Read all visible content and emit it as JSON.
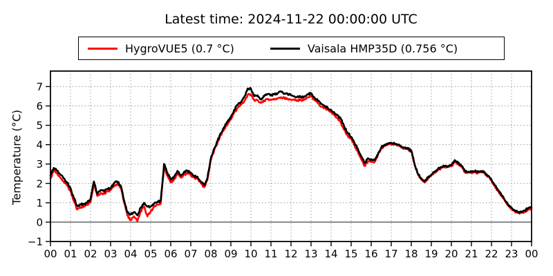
{
  "title": "Latest time: 2024-11-22 00:00:00 UTC",
  "legend": {
    "items": [
      {
        "label": "HygroVUE5 (0.7 °C)",
        "color": "#ff0000"
      },
      {
        "label": "Vaisala HMP35D (0.756 °C)",
        "color": "#000000"
      }
    ]
  },
  "chart_data": {
    "type": "line",
    "title": "Latest time: 2024-11-22 00:00:00 UTC",
    "xlabel": "",
    "ylabel": "Temperature (°C)",
    "x_ticks_hours": [
      0,
      1,
      2,
      3,
      4,
      5,
      6,
      7,
      8,
      9,
      10,
      11,
      12,
      13,
      14,
      15,
      16,
      17,
      18,
      19,
      20,
      21,
      22,
      23,
      24
    ],
    "x_ticklabels": [
      "00",
      "01",
      "02",
      "03",
      "04",
      "05",
      "06",
      "07",
      "08",
      "09",
      "10",
      "11",
      "12",
      "13",
      "14",
      "15",
      "16",
      "17",
      "18",
      "19",
      "20",
      "21",
      "22",
      "23",
      "00"
    ],
    "y_ticks": [
      -1,
      0,
      1,
      2,
      3,
      4,
      5,
      6,
      7
    ],
    "y_ticklabels": [
      "−1",
      "0",
      "1",
      "2",
      "3",
      "4",
      "5",
      "6",
      "7"
    ],
    "xlim": [
      0,
      24
    ],
    "ylim": [
      -1,
      7.8
    ],
    "grid": true,
    "grid_style": "dotted",
    "zero_line": true,
    "legend_position": "top-center",
    "x_step_minutes": 10,
    "series": [
      {
        "name": "HygroVUE5 (0.7 °C)",
        "color": "#ff0000",
        "latest_value_c": 0.7,
        "values": [
          2.25,
          2.65,
          2.5,
          2.3,
          2.1,
          1.9,
          1.6,
          1.1,
          0.65,
          0.75,
          0.85,
          0.9,
          1.05,
          1.95,
          1.35,
          1.5,
          1.45,
          1.6,
          1.65,
          1.85,
          1.95,
          1.8,
          1.05,
          0.35,
          0.1,
          0.3,
          0.05,
          0.55,
          0.8,
          0.3,
          0.55,
          0.8,
          0.9,
          0.95,
          2.85,
          2.4,
          2.05,
          2.2,
          2.5,
          2.3,
          2.45,
          2.55,
          2.4,
          2.3,
          2.25,
          2.0,
          1.8,
          2.2,
          3.2,
          3.7,
          4.1,
          4.5,
          4.8,
          5.05,
          5.3,
          5.65,
          5.9,
          6.05,
          6.25,
          6.55,
          6.6,
          6.3,
          6.3,
          6.15,
          6.25,
          6.35,
          6.3,
          6.35,
          6.4,
          6.45,
          6.4,
          6.35,
          6.3,
          6.3,
          6.3,
          6.3,
          6.35,
          6.45,
          6.5,
          6.3,
          6.15,
          5.95,
          5.9,
          5.8,
          5.7,
          5.5,
          5.35,
          5.1,
          4.75,
          4.45,
          4.3,
          3.95,
          3.65,
          3.25,
          2.9,
          3.15,
          3.15,
          3.1,
          3.45,
          3.8,
          3.95,
          4.0,
          4.0,
          4.0,
          3.95,
          3.85,
          3.8,
          3.75,
          3.65,
          2.95,
          2.45,
          2.2,
          2.05,
          2.25,
          2.4,
          2.55,
          2.7,
          2.8,
          2.85,
          2.85,
          2.9,
          3.1,
          3.0,
          2.85,
          2.6,
          2.55,
          2.55,
          2.58,
          2.55,
          2.58,
          2.5,
          2.35,
          2.15,
          1.85,
          1.6,
          1.35,
          1.1,
          0.85,
          0.7,
          0.55,
          0.48,
          0.48,
          0.55,
          0.65,
          0.7
        ]
      },
      {
        "name": "Vaisala HMP35D (0.756 °C)",
        "color": "#000000",
        "latest_value_c": 0.756,
        "values": [
          2.4,
          2.8,
          2.65,
          2.45,
          2.25,
          2.05,
          1.75,
          1.25,
          0.85,
          0.9,
          0.95,
          1.0,
          1.2,
          2.1,
          1.45,
          1.65,
          1.6,
          1.7,
          1.75,
          2.0,
          2.1,
          1.9,
          1.15,
          0.5,
          0.4,
          0.5,
          0.35,
          0.75,
          1.0,
          0.8,
          0.8,
          0.95,
          1.05,
          1.1,
          3.0,
          2.55,
          2.2,
          2.35,
          2.65,
          2.4,
          2.6,
          2.65,
          2.55,
          2.4,
          2.35,
          2.1,
          1.9,
          2.3,
          3.3,
          3.8,
          4.2,
          4.6,
          4.9,
          5.2,
          5.45,
          5.8,
          6.05,
          6.2,
          6.45,
          6.9,
          6.9,
          6.5,
          6.55,
          6.35,
          6.5,
          6.6,
          6.55,
          6.6,
          6.65,
          6.75,
          6.65,
          6.6,
          6.55,
          6.5,
          6.5,
          6.45,
          6.5,
          6.6,
          6.65,
          6.45,
          6.3,
          6.1,
          6.0,
          5.9,
          5.8,
          5.65,
          5.5,
          5.3,
          4.9,
          4.6,
          4.4,
          4.1,
          3.8,
          3.4,
          3.05,
          3.3,
          3.25,
          3.2,
          3.5,
          3.85,
          4.0,
          4.05,
          4.1,
          4.05,
          4.0,
          3.9,
          3.85,
          3.8,
          3.7,
          3.0,
          2.5,
          2.25,
          2.1,
          2.3,
          2.45,
          2.6,
          2.75,
          2.85,
          2.9,
          2.9,
          2.95,
          3.2,
          3.05,
          2.9,
          2.65,
          2.6,
          2.6,
          2.62,
          2.6,
          2.62,
          2.55,
          2.4,
          2.2,
          1.9,
          1.65,
          1.4,
          1.15,
          0.9,
          0.75,
          0.6,
          0.52,
          0.52,
          0.6,
          0.72,
          0.756
        ]
      }
    ]
  }
}
